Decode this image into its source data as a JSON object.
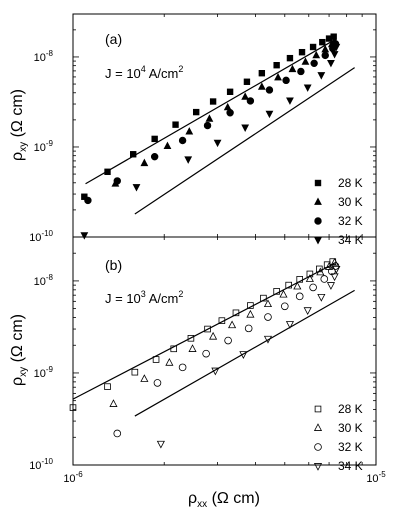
{
  "chart_data": [
    {
      "type": "scatter",
      "panel_label": "(a)",
      "annotation_prefix": "J = 10",
      "annotation_exponent": "4",
      "annotation_unit_prefix": " A/cm",
      "annotation_unit_exponent": "2",
      "ylabel_main": "ρ",
      "ylabel_sub": "xy",
      "ylabel_unit": " (Ω cm)",
      "xscale": "log",
      "yscale": "log",
      "xlim": [
        1e-06,
        1e-05
      ],
      "ylim": [
        1e-10,
        3e-08
      ],
      "y_tick_labels": [
        {
          "value": 1e-08,
          "mantissa": "10",
          "exponent": "-8"
        },
        {
          "value": 1e-09,
          "mantissa": "10",
          "exponent": "-9"
        },
        {
          "value": 1e-10,
          "mantissa": "10",
          "exponent": "-10"
        }
      ],
      "legend_placement": "right",
      "marker_fill": "filled",
      "series": [
        {
          "name": "28 K",
          "marker": "square",
          "points": [
            [
              1.09e-06,
              2.8e-10
            ],
            [
              1.3e-06,
              5.3e-10
            ],
            [
              1.58e-06,
              8.3e-10
            ],
            [
              1.86e-06,
              1.23e-09
            ],
            [
              2.18e-06,
              1.77e-09
            ],
            [
              2.55e-06,
              2.44e-09
            ],
            [
              2.9e-06,
              3.2e-09
            ],
            [
              3.3e-06,
              4.1e-09
            ],
            [
              3.75e-06,
              5.3e-09
            ],
            [
              4.2e-06,
              6.6e-09
            ],
            [
              4.7e-06,
              8.1e-09
            ],
            [
              5.2e-06,
              9.7e-09
            ],
            [
              5.7e-06,
              1.13e-08
            ],
            [
              6.2e-06,
              1.29e-08
            ],
            [
              6.65e-06,
              1.46e-08
            ],
            [
              7e-06,
              1.6e-08
            ],
            [
              7.25e-06,
              1.68e-08
            ]
          ]
        },
        {
          "name": "30 K",
          "marker": "triangle-up",
          "points": [
            [
              1.38e-06,
              3.9e-10
            ],
            [
              1.72e-06,
              6.6e-10
            ],
            [
              2.05e-06,
              1.02e-09
            ],
            [
              2.42e-06,
              1.48e-09
            ],
            [
              2.82e-06,
              2.05e-09
            ],
            [
              3.24e-06,
              2.75e-09
            ],
            [
              3.7e-06,
              3.6e-09
            ],
            [
              4.2e-06,
              4.65e-09
            ],
            [
              4.75e-06,
              5.9e-09
            ],
            [
              5.3e-06,
              7.3e-09
            ],
            [
              5.85e-06,
              8.8e-09
            ],
            [
              6.35e-06,
              1.04e-08
            ],
            [
              6.8e-06,
              1.21e-08
            ],
            [
              7.15e-06,
              1.38e-08
            ],
            [
              7.3e-06,
              1.5e-08
            ]
          ]
        },
        {
          "name": "32 K",
          "marker": "circle",
          "points": [
            [
              1.12e-06,
              2.55e-10
            ],
            [
              1.4e-06,
              4.2e-10
            ],
            [
              1.86e-06,
              7.8e-10
            ],
            [
              2.3e-06,
              1.18e-09
            ],
            [
              2.78e-06,
              1.73e-09
            ],
            [
              3.3e-06,
              2.4e-09
            ],
            [
              3.85e-06,
              3.25e-09
            ],
            [
              4.45e-06,
              4.3e-09
            ],
            [
              5.05e-06,
              5.5e-09
            ],
            [
              5.65e-06,
              6.9e-09
            ],
            [
              6.25e-06,
              8.5e-09
            ],
            [
              6.8e-06,
              1.04e-08
            ],
            [
              7.2e-06,
              1.24e-08
            ],
            [
              7.35e-06,
              1.4e-08
            ]
          ]
        },
        {
          "name": "34 K",
          "marker": "triangle-down",
          "points": [
            [
              1.09e-06,
              1.05e-10
            ],
            [
              1.62e-06,
              3.6e-10
            ],
            [
              2.4e-06,
              7.3e-10
            ],
            [
              3e-06,
              1.12e-09
            ],
            [
              3.7e-06,
              1.65e-09
            ],
            [
              4.45e-06,
              2.35e-09
            ],
            [
              5.2e-06,
              3.3e-09
            ],
            [
              5.95e-06,
              4.6e-09
            ],
            [
              6.6e-06,
              6.3e-09
            ],
            [
              7.1e-06,
              8.6e-09
            ],
            [
              7.3e-06,
              1.08e-08
            ],
            [
              7.4e-06,
              1.3e-08
            ]
          ]
        }
      ],
      "fit_lines": [
        {
          "from": [
            1.1e-06,
            3.9e-10
          ],
          "to": [
            7.3e-06,
            1.55e-08
          ]
        },
        {
          "from": [
            1.6e-06,
            1.8e-10
          ],
          "to": [
            8.5e-06,
            7.6e-09
          ]
        }
      ]
    },
    {
      "type": "scatter",
      "panel_label": "(b)",
      "annotation_prefix": "J = 10",
      "annotation_exponent": "3",
      "annotation_unit_prefix": " A/cm",
      "annotation_unit_exponent": "2",
      "ylabel_main": "ρ",
      "ylabel_sub": "xy",
      "ylabel_unit": " (Ω cm)",
      "xlabel_main": "ρ",
      "xlabel_sub": "xx",
      "xlabel_unit": " (Ω cm)",
      "xscale": "log",
      "yscale": "log",
      "xlim": [
        1e-06,
        1e-05
      ],
      "ylim": [
        1e-10,
        3e-08
      ],
      "y_tick_labels": [
        {
          "value": 1e-08,
          "mantissa": "10",
          "exponent": "-8"
        },
        {
          "value": 1e-09,
          "mantissa": "10",
          "exponent": "-9"
        },
        {
          "value": 1e-10,
          "mantissa": "10",
          "exponent": "-10"
        }
      ],
      "x_tick_labels": [
        {
          "value": 1e-06,
          "mantissa": "10",
          "exponent": "-6"
        },
        {
          "value": 1e-05,
          "mantissa": "10",
          "exponent": "-5"
        }
      ],
      "legend_placement": "right",
      "marker_fill": "open",
      "series": [
        {
          "name": "28 K",
          "marker": "square",
          "points": [
            [
              1e-06,
              4.2e-10
            ],
            [
              1.3e-06,
              7.1e-10
            ],
            [
              1.6e-06,
              1.02e-09
            ],
            [
              1.88e-06,
              1.4e-09
            ],
            [
              2.15e-06,
              1.83e-09
            ],
            [
              2.45e-06,
              2.38e-09
            ],
            [
              2.78e-06,
              3e-09
            ],
            [
              3.1e-06,
              3.7e-09
            ],
            [
              3.45e-06,
              4.5e-09
            ],
            [
              3.85e-06,
              5.4e-09
            ],
            [
              4.25e-06,
              6.5e-09
            ],
            [
              4.7e-06,
              7.7e-09
            ],
            [
              5.15e-06,
              9e-09
            ],
            [
              5.6e-06,
              1.04e-08
            ],
            [
              6.05e-06,
              1.19e-08
            ],
            [
              6.5e-06,
              1.35e-08
            ],
            [
              6.9e-06,
              1.5e-08
            ],
            [
              7.2e-06,
              1.62e-08
            ]
          ]
        },
        {
          "name": "30 K",
          "marker": "triangle-up",
          "points": [
            [
              1.36e-06,
              4.6e-10
            ],
            [
              1.72e-06,
              8.6e-10
            ],
            [
              2.08e-06,
              1.29e-09
            ],
            [
              2.48e-06,
              1.82e-09
            ],
            [
              2.9e-06,
              2.48e-09
            ],
            [
              3.35e-06,
              3.3e-09
            ],
            [
              3.85e-06,
              4.3e-09
            ],
            [
              4.4e-06,
              5.6e-09
            ],
            [
              4.95e-06,
              7.1e-09
            ],
            [
              5.5e-06,
              8.7e-09
            ],
            [
              6.05e-06,
              1.05e-08
            ],
            [
              6.55e-06,
              1.24e-08
            ],
            [
              7e-06,
              1.42e-08
            ],
            [
              7.3e-06,
              1.58e-08
            ]
          ]
        },
        {
          "name": "32 K",
          "marker": "circle",
          "points": [
            [
              1.4e-06,
              2.2e-10
            ],
            [
              1.9e-06,
              7.8e-10
            ],
            [
              2.3e-06,
              1.15e-09
            ],
            [
              2.75e-06,
              1.62e-09
            ],
            [
              3.25e-06,
              2.25e-09
            ],
            [
              3.8e-06,
              3.05e-09
            ],
            [
              4.4e-06,
              4.05e-09
            ],
            [
              5e-06,
              5.3e-09
            ],
            [
              5.6e-06,
              6.8e-09
            ],
            [
              6.2e-06,
              8.5e-09
            ],
            [
              6.75e-06,
              1.05e-08
            ],
            [
              7.15e-06,
              1.27e-08
            ],
            [
              7.35e-06,
              1.45e-08
            ]
          ]
        },
        {
          "name": "34 K",
          "marker": "triangle-down",
          "points": [
            [
              1.95e-06,
              1.7e-10
            ],
            [
              2.95e-06,
              1.06e-09
            ],
            [
              3.65e-06,
              1.6e-09
            ],
            [
              4.4e-06,
              2.35e-09
            ],
            [
              5.2e-06,
              3.4e-09
            ],
            [
              5.95e-06,
              4.8e-09
            ],
            [
              6.6e-06,
              6.7e-09
            ],
            [
              7.1e-06,
              9e-09
            ],
            [
              7.3e-06,
              1.12e-08
            ],
            [
              7.4e-06,
              1.35e-08
            ]
          ]
        }
      ],
      "fit_lines": [
        {
          "from": [
            1e-06,
            5.2e-10
          ],
          "to": [
            7.3e-06,
            1.55e-08
          ]
        },
        {
          "from": [
            1.6e-06,
            3.4e-10
          ],
          "to": [
            8.5e-06,
            7.9e-09
          ]
        }
      ]
    }
  ]
}
